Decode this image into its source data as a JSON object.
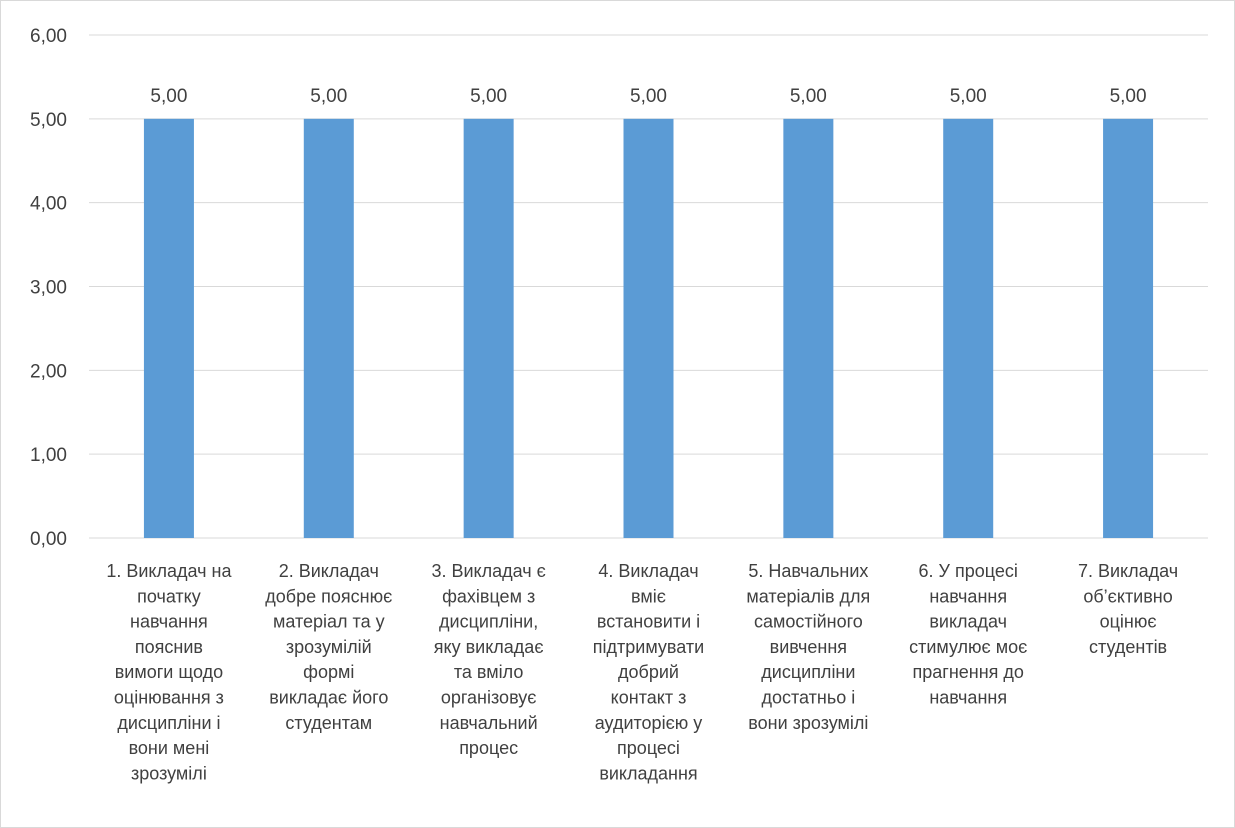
{
  "chart_data": {
    "type": "bar",
    "categories": [
      [
        "1. Викладач на",
        "початку",
        "навчання",
        "пояснив",
        "вимоги щодо",
        "оцінювання з",
        "дисципліни і",
        "вони мені",
        "зрозумілі"
      ],
      [
        "2. Викладач",
        "добре пояснює",
        "матеріал та у",
        "зрозумілій",
        "формі",
        "викладає його",
        "студентам"
      ],
      [
        "3. Викладач є",
        "фахівцем з",
        "дисципліни,",
        "яку викладає",
        "та вміло",
        "організовує",
        "навчальний",
        "процес"
      ],
      [
        "4. Викладач",
        "вміє",
        "встановити і",
        "підтримувати",
        "добрий",
        "контакт з",
        "аудиторією у",
        "процесі",
        "викладання"
      ],
      [
        "5. Навчальних",
        "матеріалів для",
        "самостійного",
        "вивчення",
        "дисципліни",
        "достатньо і",
        "вони зрозумілі"
      ],
      [
        "6.  У процесі",
        "навчання",
        "викладач",
        "стимулює моє",
        "прагнення до",
        "навчання"
      ],
      [
        "7. Викладач",
        "об’єктивно",
        "оцінює",
        "студентів"
      ]
    ],
    "values": [
      5,
      5,
      5,
      5,
      5,
      5,
      5
    ],
    "data_labels": [
      "5,00",
      "5,00",
      "5,00",
      "5,00",
      "5,00",
      "5,00",
      "5,00"
    ],
    "yticks": [
      "0,00",
      "1,00",
      "2,00",
      "3,00",
      "4,00",
      "5,00",
      "6,00"
    ],
    "ylim": [
      0,
      6
    ],
    "title": "",
    "xlabel": "",
    "ylabel": "",
    "grid": true,
    "legend": "none",
    "colors": {
      "bar": "#5b9bd5",
      "grid": "#d9d9d9",
      "text": "#404040"
    }
  }
}
